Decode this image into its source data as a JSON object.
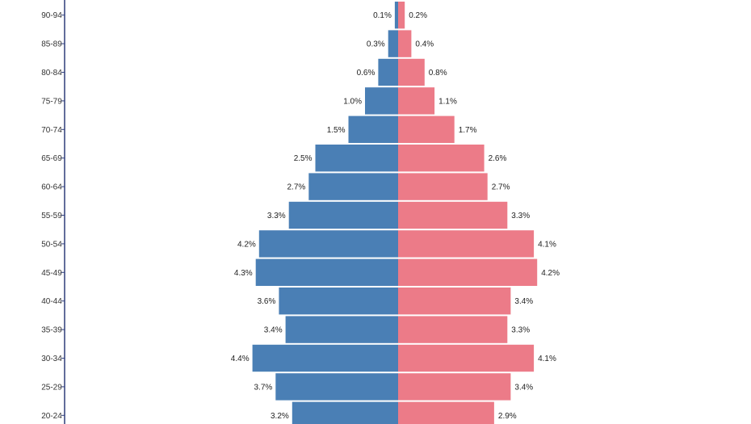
{
  "chart_data": {
    "type": "bar",
    "orientation": "horizontal",
    "layout": "population-pyramid",
    "categories": [
      "90-94",
      "85-89",
      "80-84",
      "75-79",
      "70-74",
      "65-69",
      "60-64",
      "55-59",
      "50-54",
      "45-49",
      "40-44",
      "35-39",
      "30-34",
      "25-29",
      "20-24"
    ],
    "series": [
      {
        "side": "left",
        "color": "#4a7fb5",
        "values": [
          0.1,
          0.3,
          0.6,
          1.0,
          1.5,
          2.5,
          2.7,
          3.3,
          4.2,
          4.3,
          3.6,
          3.4,
          4.4,
          3.7,
          3.2
        ],
        "labels": [
          "0.1%",
          "0.3%",
          "0.6%",
          "1.0%",
          "1.5%",
          "2.5%",
          "2.7%",
          "3.3%",
          "4.2%",
          "4.3%",
          "3.6%",
          "3.4%",
          "4.4%",
          "3.7%",
          "3.2%"
        ]
      },
      {
        "side": "right",
        "color": "#ec7b88",
        "values": [
          0.2,
          0.4,
          0.8,
          1.1,
          1.7,
          2.6,
          2.7,
          3.3,
          4.1,
          4.2,
          3.4,
          3.3,
          4.1,
          3.4,
          2.9
        ],
        "labels": [
          "0.2%",
          "0.4%",
          "0.8%",
          "1.1%",
          "1.7%",
          "2.6%",
          "2.7%",
          "3.3%",
          "4.1%",
          "4.2%",
          "3.4%",
          "3.3%",
          "4.1%",
          "3.4%",
          "2.9%"
        ]
      }
    ],
    "title": "",
    "xlabel": "",
    "ylabel": "",
    "grid": false,
    "legend": "none",
    "axis_line_color": "#2e3d7a"
  }
}
